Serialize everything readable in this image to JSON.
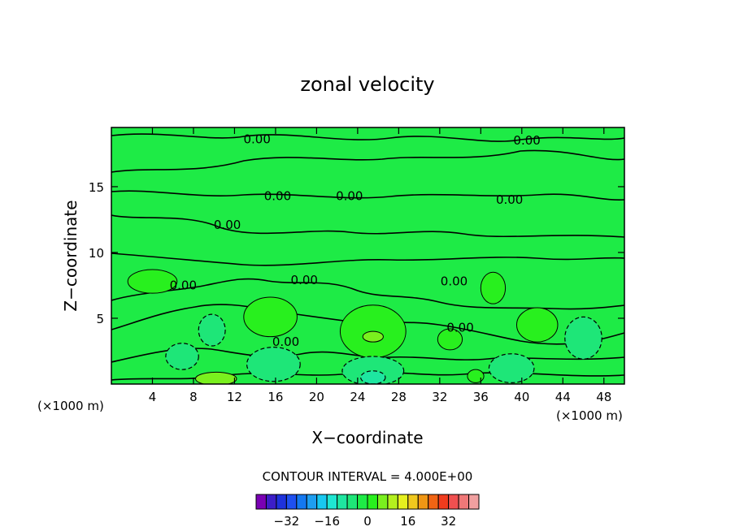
{
  "chart_data": {
    "type": "heatmap",
    "title": "zonal velocity",
    "xlabel": "X−coordinate",
    "ylabel": "Z−coordinate",
    "x_unit_left": "(×1000 m)",
    "x_unit_right": "(×1000 m)",
    "xlim": [
      0,
      50
    ],
    "ylim": [
      0,
      19.5
    ],
    "x_ticks": [
      4,
      8,
      12,
      16,
      20,
      24,
      28,
      32,
      36,
      40,
      44,
      48
    ],
    "y_ticks": [
      5,
      10,
      15
    ],
    "contour_interval_text": "CONTOUR INTERVAL = 4.000E+00",
    "contour_labels": [
      {
        "text": "0.00",
        "x": 14.2,
        "z": 18.6
      },
      {
        "text": "0.00",
        "x": 40.5,
        "z": 18.5
      },
      {
        "text": "0.00",
        "x": 16.2,
        "z": 14.3
      },
      {
        "text": "0.00",
        "x": 23.2,
        "z": 14.3
      },
      {
        "text": "0.00",
        "x": 38.8,
        "z": 14.0
      },
      {
        "text": "0.00",
        "x": 11.3,
        "z": 12.1
      },
      {
        "text": "0.00",
        "x": 18.8,
        "z": 7.9
      },
      {
        "text": "0.00",
        "x": 7.0,
        "z": 7.5
      },
      {
        "text": "0.00",
        "x": 33.4,
        "z": 7.8
      },
      {
        "text": "0.00",
        "x": 17.0,
        "z": 3.2
      },
      {
        "text": "0.00",
        "x": 34.0,
        "z": 4.3
      }
    ],
    "features": [
      {
        "kind": "positive",
        "level": 4,
        "x": 4.0,
        "z": 7.8,
        "rx": 2.4,
        "rz": 0.9
      },
      {
        "kind": "positive",
        "level": 4,
        "x": 15.5,
        "z": 5.1,
        "rx": 2.6,
        "rz": 1.5
      },
      {
        "kind": "positive",
        "level": 4,
        "x": 25.5,
        "z": 4.0,
        "rx": 3.2,
        "rz": 2.0
      },
      {
        "kind": "positive",
        "level": 8,
        "x": 25.5,
        "z": 3.6,
        "rx": 1.0,
        "rz": 0.4
      },
      {
        "kind": "positive",
        "level": 4,
        "x": 37.2,
        "z": 7.3,
        "rx": 1.2,
        "rz": 1.2
      },
      {
        "kind": "positive",
        "level": 4,
        "x": 41.5,
        "z": 4.5,
        "rx": 2.0,
        "rz": 1.3
      },
      {
        "kind": "positive",
        "level": 4,
        "x": 33.0,
        "z": 3.4,
        "rx": 1.2,
        "rz": 0.8
      },
      {
        "kind": "positive",
        "level": 4,
        "x": 35.5,
        "z": 0.6,
        "rx": 0.8,
        "rz": 0.5
      },
      {
        "kind": "positive",
        "level": 8,
        "x": 10.2,
        "z": 0.4,
        "rx": 2.0,
        "rz": 0.5
      },
      {
        "kind": "negative",
        "level": -4,
        "x": 9.8,
        "z": 4.1,
        "rx": 1.3,
        "rz": 1.2
      },
      {
        "kind": "negative",
        "level": -4,
        "x": 6.9,
        "z": 2.1,
        "rx": 1.6,
        "rz": 1.0
      },
      {
        "kind": "negative",
        "level": -4,
        "x": 15.8,
        "z": 1.5,
        "rx": 2.6,
        "rz": 1.3
      },
      {
        "kind": "negative",
        "level": -4,
        "x": 25.5,
        "z": 1.0,
        "rx": 3.0,
        "rz": 1.1
      },
      {
        "kind": "negative",
        "level": -8,
        "x": 25.5,
        "z": 0.5,
        "rx": 1.2,
        "rz": 0.5
      },
      {
        "kind": "negative",
        "level": -4,
        "x": 39.0,
        "z": 1.2,
        "rx": 2.2,
        "rz": 1.1
      },
      {
        "kind": "negative",
        "level": -4,
        "x": 46.0,
        "z": 3.5,
        "rx": 1.8,
        "rz": 1.6
      }
    ],
    "colorbar": {
      "colors": [
        "#7a00b4",
        "#3c1ec8",
        "#1e32dc",
        "#1e50f0",
        "#1478f0",
        "#1e9ef0",
        "#18c8f0",
        "#1ee6d2",
        "#1ee6a0",
        "#1ee678",
        "#1eeb46",
        "#28f01e",
        "#7af01e",
        "#b4f01e",
        "#e6f01e",
        "#f0c81e",
        "#f09614",
        "#f06414",
        "#f03c1e",
        "#f05050",
        "#f07878",
        "#f0a0a0"
      ],
      "tick_labels": [
        "−32",
        "−16",
        "0",
        "16",
        "32"
      ],
      "tick_values": [
        -32,
        -16,
        0,
        16,
        32
      ],
      "vmin": -44,
      "vmax": 44
    },
    "field_colors": {
      "background": "#1eeb46",
      "negative_1": "#1ee678",
      "negative_2": "#1ee6a0",
      "positive_1": "#28f01e",
      "positive_2": "#7af01e"
    }
  }
}
